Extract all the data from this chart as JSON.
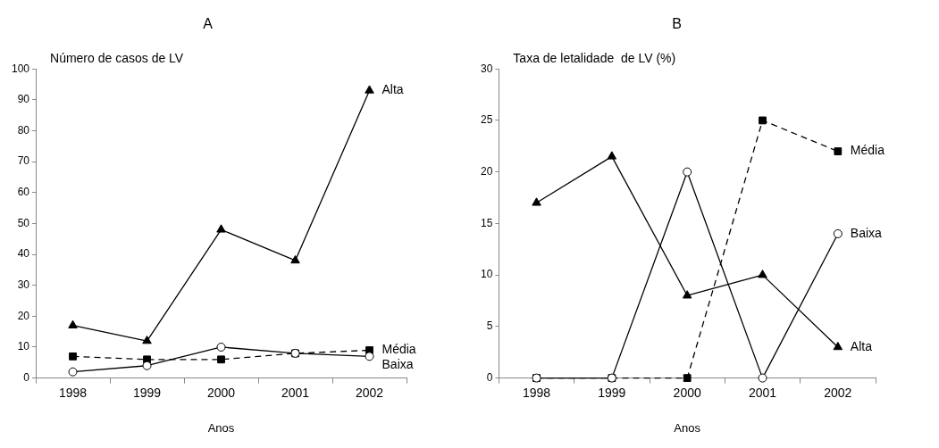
{
  "chart_data": [
    {
      "type": "line",
      "title": "A",
      "ylabel": "Número de casos de LV",
      "xlabel": "Anos",
      "categories": [
        "1998",
        "1999",
        "2000",
        "2001",
        "2002"
      ],
      "ylim": [
        0,
        100
      ],
      "yticks": [
        0,
        10,
        20,
        30,
        40,
        50,
        60,
        70,
        80,
        90,
        100
      ],
      "legend": false,
      "grid": false,
      "series": [
        {
          "name": "Alta",
          "color": "#000000",
          "marker": "triangle",
          "line_style": "solid",
          "values": [
            17,
            12,
            48,
            38,
            93
          ]
        },
        {
          "name": "Média",
          "color": "#000000",
          "marker": "square",
          "line_style": "dashed",
          "values": [
            7,
            6,
            6,
            8,
            9
          ]
        },
        {
          "name": "Baixa",
          "color": "#000000",
          "marker": "circle",
          "line_style": "solid",
          "values": [
            2,
            4,
            10,
            8,
            7
          ]
        }
      ]
    },
    {
      "type": "line",
      "title": "B",
      "ylabel": "Taxa de letalidade  de LV (%)",
      "xlabel": "Anos",
      "categories": [
        "1998",
        "1999",
        "2000",
        "2001",
        "2002"
      ],
      "ylim": [
        0,
        30
      ],
      "yticks": [
        0,
        5,
        10,
        15,
        20,
        25,
        30
      ],
      "legend": false,
      "grid": false,
      "series": [
        {
          "name": "Alta",
          "color": "#000000",
          "marker": "triangle",
          "line_style": "solid",
          "values": [
            17,
            21.5,
            8,
            10,
            3
          ]
        },
        {
          "name": "Média",
          "color": "#000000",
          "marker": "square",
          "line_style": "dashed",
          "values": [
            0,
            0,
            0,
            25,
            22
          ]
        },
        {
          "name": "Baixa",
          "color": "#000000",
          "marker": "circle",
          "line_style": "solid",
          "values": [
            0,
            0,
            20,
            0,
            14
          ]
        }
      ]
    }
  ]
}
